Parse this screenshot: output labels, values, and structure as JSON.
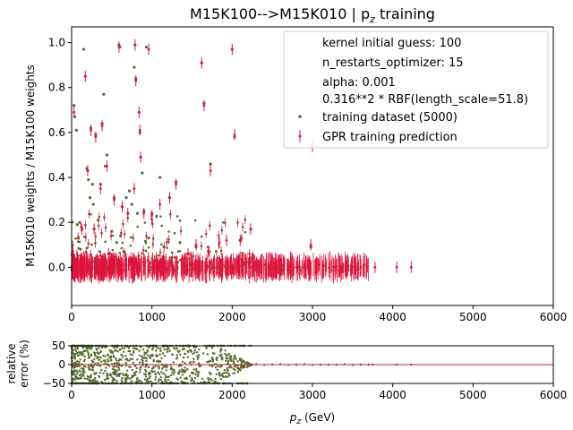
{
  "title": "M15K100-->M15K010 | p",
  "title_sub": "z",
  "title_suffix": " training",
  "colors": {
    "points": "#556b2f",
    "prediction": "#dc143c",
    "baseline": "#dc143c",
    "axes": "#000000",
    "legend_border": "#cccccc"
  },
  "chart_data": [
    {
      "type": "scatter",
      "name": "main",
      "ylabel": "M15K010 weights / M15K100 weights",
      "xlim": [
        0,
        6000
      ],
      "ylim": [
        -0.17,
        1.07
      ],
      "xticks": [
        0,
        1000,
        2000,
        3000,
        4000,
        5000,
        6000
      ],
      "yticks": [
        0.0,
        0.2,
        0.4,
        0.6,
        0.8,
        1.0
      ],
      "ytick_labels": [
        "0.0",
        "0.2",
        "0.4",
        "0.6",
        "0.8",
        "1.0"
      ],
      "legend": {
        "placement": "top-right",
        "text_entries": [
          "kernel initial guess: 100",
          "n_restarts_optimizer: 15",
          "alpha: 0.001",
          "0.316**2 * RBF(length_scale=51.8)"
        ],
        "series_entries": [
          {
            "marker": "dot",
            "label": "training dataset (5000)"
          },
          {
            "marker": "errorbar",
            "label": "GPR training prediction"
          }
        ]
      },
      "series": [
        {
          "name": "training dataset (5000)",
          "points": [
            [
              30,
              0.72
            ],
            [
              40,
              0.67
            ],
            [
              60,
              0.61
            ],
            [
              70,
              0.19
            ],
            [
              85,
              0.13
            ],
            [
              100,
              0.2
            ],
            [
              110,
              0.08
            ],
            [
              130,
              0.17
            ],
            [
              150,
              0.97
            ],
            [
              170,
              0.85
            ],
            [
              190,
              0.44
            ],
            [
              200,
              0.43
            ],
            [
              210,
              0.39
            ],
            [
              230,
              0.31
            ],
            [
              240,
              0.62
            ],
            [
              260,
              0.37
            ],
            [
              270,
              0.28
            ],
            [
              280,
              0.17
            ],
            [
              300,
              0.59
            ],
            [
              330,
              0.21
            ],
            [
              350,
              0.07
            ],
            [
              360,
              0.37
            ],
            [
              380,
              0.64
            ],
            [
              400,
              0.77
            ],
            [
              420,
              0.45
            ],
            [
              440,
              0.5
            ],
            [
              460,
              0.06
            ],
            [
              500,
              0.16
            ],
            [
              530,
              0.31
            ],
            [
              560,
              0.11
            ],
            [
              590,
              0.99
            ],
            [
              600,
              0.98
            ],
            [
              610,
              0.14
            ],
            [
              630,
              0.27
            ],
            [
              650,
              0.07
            ],
            [
              680,
              0.31
            ],
            [
              700,
              0.24
            ],
            [
              720,
              0.34
            ],
            [
              750,
              0.28
            ],
            [
              780,
              0.89
            ],
            [
              790,
              0.99
            ],
            [
              800,
              0.84
            ],
            [
              820,
              0.24
            ],
            [
              840,
              0.69
            ],
            [
              850,
              0.6
            ],
            [
              860,
              0.49
            ],
            [
              880,
              0.42
            ],
            [
              900,
              0.25
            ],
            [
              930,
              0.98
            ],
            [
              960,
              0.13
            ],
            [
              1000,
              0.24
            ],
            [
              1100,
              0.4
            ],
            [
              1150,
              0.09
            ],
            [
              1220,
              0.31
            ],
            [
              1300,
              0.38
            ],
            [
              1350,
              0.11
            ],
            [
              1450,
              0.06
            ],
            [
              1550,
              0.09
            ],
            [
              1620,
              0.91
            ],
            [
              1650,
              0.73
            ],
            [
              1700,
              0.09
            ],
            [
              1730,
              0.46
            ],
            [
              1800,
              0.07
            ],
            [
              2000,
              0.97
            ],
            [
              2030,
              0.58
            ],
            [
              2100,
              0.12
            ],
            [
              2230,
              0.17
            ],
            [
              2980,
              0.09
            ],
            [
              3000,
              0.54
            ]
          ]
        },
        {
          "name": "GPR training prediction",
          "points": [
            [
              30,
              0.69
            ],
            [
              170,
              0.85
            ],
            [
              240,
              0.61
            ],
            [
              300,
              0.58
            ],
            [
              380,
              0.63
            ],
            [
              440,
              0.45
            ],
            [
              590,
              0.98
            ],
            [
              790,
              0.99
            ],
            [
              800,
              0.83
            ],
            [
              840,
              0.69
            ],
            [
              850,
              0.61
            ],
            [
              860,
              0.49
            ],
            [
              960,
              0.97
            ],
            [
              1300,
              0.37
            ],
            [
              1620,
              0.91
            ],
            [
              1650,
              0.72
            ],
            [
              1730,
              0.43
            ],
            [
              2000,
              0.97
            ],
            [
              2030,
              0.59
            ],
            [
              3000,
              0.54
            ],
            [
              2980,
              0.1
            ],
            [
              2230,
              0.17
            ],
            [
              2100,
              0.12
            ],
            [
              1930,
              0.12
            ],
            [
              1840,
              0.11
            ],
            [
              1700,
              0.07
            ],
            [
              1550,
              0.1
            ],
            [
              1450,
              0.06
            ],
            [
              1220,
              0.31
            ],
            [
              1100,
              0.28
            ],
            [
              1000,
              0.23
            ],
            [
              900,
              0.24
            ],
            [
              780,
              0.35
            ],
            [
              700,
              0.24
            ],
            [
              630,
              0.27
            ],
            [
              530,
              0.3
            ],
            [
              460,
              0.06
            ],
            [
              360,
              0.35
            ],
            [
              280,
              0.17
            ],
            [
              200,
              0.43
            ],
            [
              130,
              0.17
            ]
          ]
        }
      ]
    },
    {
      "type": "scatter",
      "name": "ratio",
      "xlabel_main": "p",
      "xlabel_sub": "z",
      "xlabel_unit": " (GeV)",
      "ylabel_line1": "relative",
      "ylabel_line2": "error (%)",
      "xlim": [
        0,
        6000
      ],
      "ylim": [
        -50,
        50
      ],
      "xticks": [
        0,
        1000,
        2000,
        3000,
        4000,
        5000,
        6000
      ],
      "yticks": [
        -50,
        0,
        50
      ],
      "ytick_labels": [
        "−50",
        "0",
        "50"
      ],
      "tail_points": [
        [
          2300,
          1
        ],
        [
          2400,
          -1
        ],
        [
          2500,
          0
        ],
        [
          2600,
          1
        ],
        [
          2700,
          -1
        ],
        [
          2800,
          0
        ],
        [
          2900,
          1
        ],
        [
          3000,
          -1
        ],
        [
          3100,
          0
        ],
        [
          3200,
          0
        ],
        [
          3300,
          0
        ],
        [
          3400,
          1
        ],
        [
          3500,
          -1
        ],
        [
          3600,
          0
        ],
        [
          3700,
          0
        ],
        [
          3750,
          0
        ],
        [
          4050,
          0
        ],
        [
          4230,
          0
        ]
      ]
    }
  ],
  "tick_label_text": {
    "x": [
      "0",
      "1000",
      "2000",
      "3000",
      "4000",
      "5000",
      "6000"
    ]
  }
}
